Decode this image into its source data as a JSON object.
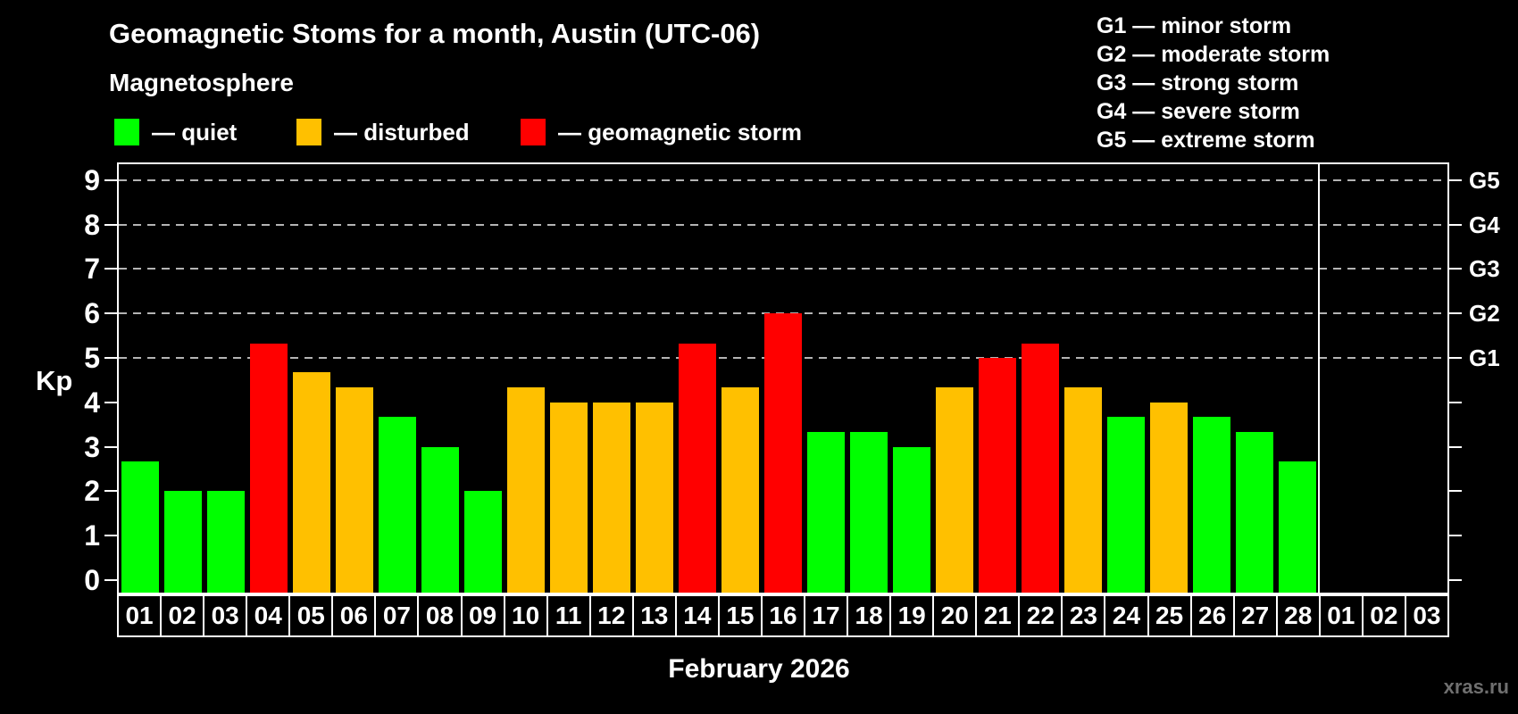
{
  "header": {
    "title": "Geomagnetic Stoms for a month, Austin (UTC-06)",
    "subtitle": "Magnetosphere"
  },
  "legend": {
    "items": [
      {
        "label": "— quiet",
        "color_key": "quiet"
      },
      {
        "label": "— disturbed",
        "color_key": "disturbed"
      },
      {
        "label": "— geomagnetic storm",
        "color_key": "storm"
      }
    ]
  },
  "g_legend": {
    "items": [
      "G1 — minor storm",
      "G2 — moderate storm",
      "G3 — strong storm",
      "G4 — severe storm",
      "G5 — extreme storm"
    ]
  },
  "colors": {
    "quiet": "#00ff00",
    "disturbed": "#ffc000",
    "storm": "#ff0000",
    "axis": "#ffffff",
    "grid": "#b4b4b4",
    "background": "#000000",
    "watermark": "#6f6f6f"
  },
  "chart_data": {
    "type": "bar",
    "title": "Geomagnetic Stoms for a month, Austin (UTC-06)",
    "xlabel": "February 2026",
    "ylabel": "Kp",
    "ylim": [
      0,
      9
    ],
    "y_ticks": [
      0,
      1,
      2,
      3,
      4,
      5,
      6,
      7,
      8,
      9
    ],
    "grid": "dashed horizontal lines at Kp 5-9 (G1-G5 levels)",
    "legend_position": "top-left",
    "right_axis_levels": [
      {
        "label": "G1",
        "kp": 5
      },
      {
        "label": "G2",
        "kp": 6
      },
      {
        "label": "G3",
        "kp": 7
      },
      {
        "label": "G4",
        "kp": 8
      },
      {
        "label": "G5",
        "kp": 9
      }
    ],
    "month_days": 28,
    "categories": [
      "01",
      "02",
      "03",
      "04",
      "05",
      "06",
      "07",
      "08",
      "09",
      "10",
      "11",
      "12",
      "13",
      "14",
      "15",
      "16",
      "17",
      "18",
      "19",
      "20",
      "21",
      "22",
      "23",
      "24",
      "25",
      "26",
      "27",
      "28",
      "01",
      "02",
      "03"
    ],
    "values": [
      2.67,
      2,
      2,
      5.33,
      4.67,
      4.33,
      3.67,
      3,
      2,
      4.33,
      4,
      4,
      4,
      5.33,
      4.33,
      6,
      3.33,
      3.33,
      3,
      4.33,
      5,
      5.33,
      4.33,
      3.67,
      4,
      3.67,
      3.33,
      2.67,
      null,
      null,
      null
    ],
    "statuses": [
      "quiet",
      "quiet",
      "quiet",
      "storm",
      "disturbed",
      "disturbed",
      "quiet",
      "quiet",
      "quiet",
      "disturbed",
      "disturbed",
      "disturbed",
      "disturbed",
      "storm",
      "disturbed",
      "storm",
      "quiet",
      "quiet",
      "quiet",
      "disturbed",
      "storm",
      "storm",
      "disturbed",
      "quiet",
      "disturbed",
      "quiet",
      "quiet",
      "quiet",
      null,
      null,
      null
    ]
  },
  "footer": {
    "month_label": "February 2026",
    "watermark": "xras.ru"
  }
}
